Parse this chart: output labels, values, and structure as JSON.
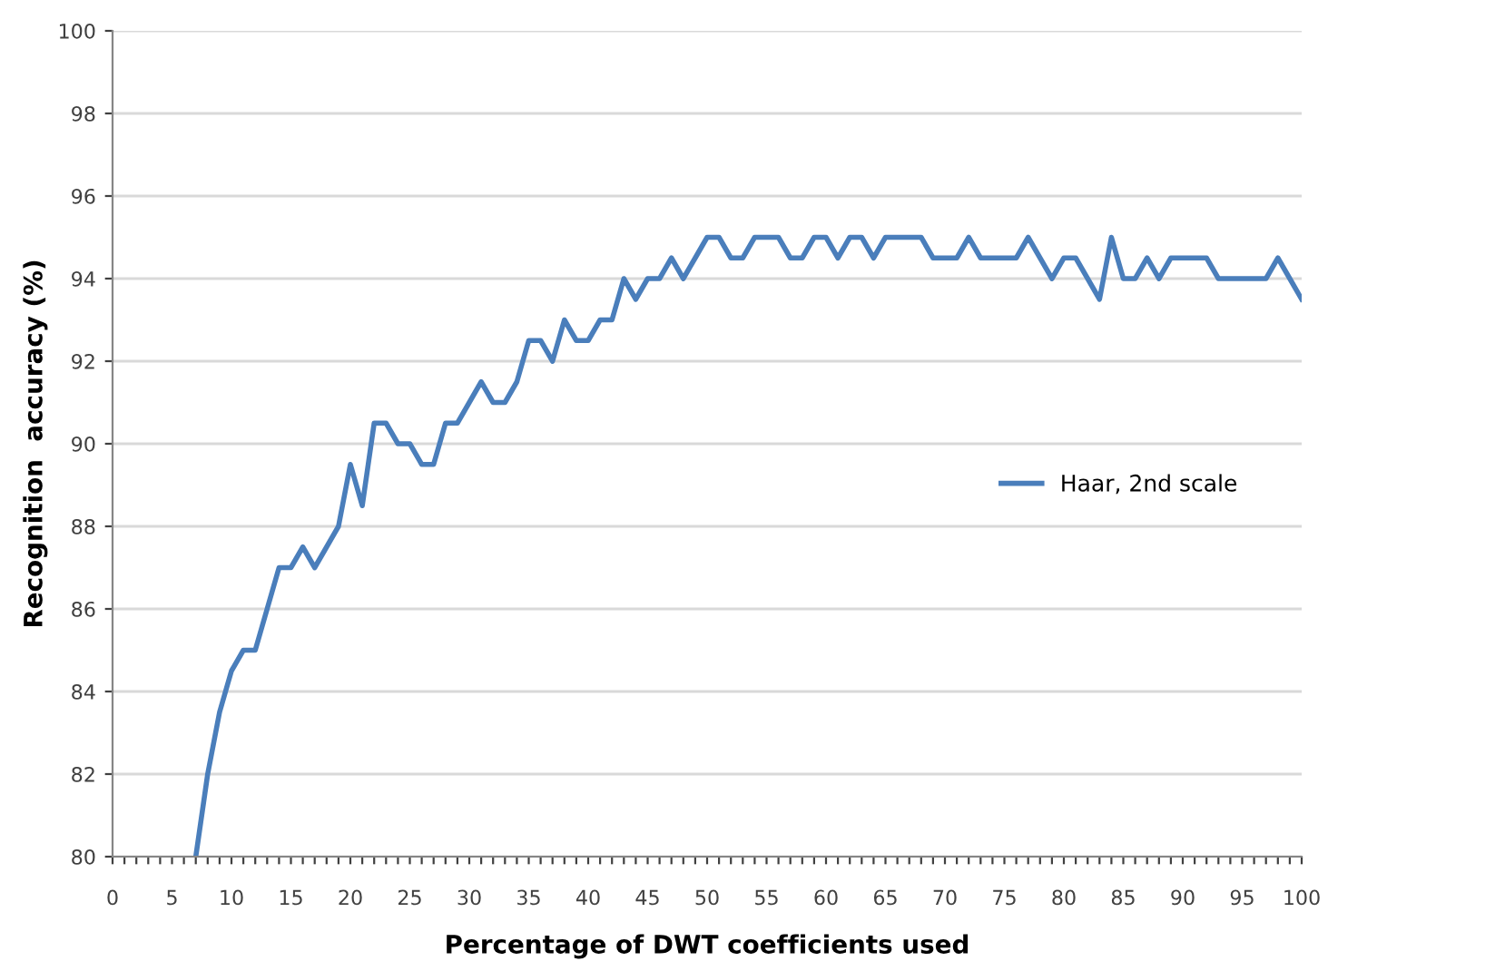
{
  "chart_data": {
    "type": "line",
    "xlabel": "Percentage of DWT coefficients used",
    "ylabel": "Recognition  accuracy (%)",
    "x": [
      7,
      8,
      9,
      10,
      11,
      12,
      13,
      14,
      15,
      16,
      17,
      18,
      19,
      20,
      21,
      22,
      23,
      24,
      25,
      26,
      27,
      28,
      29,
      30,
      31,
      32,
      33,
      34,
      35,
      36,
      37,
      38,
      39,
      40,
      41,
      42,
      43,
      44,
      45,
      46,
      47,
      48,
      49,
      50,
      51,
      52,
      53,
      54,
      55,
      56,
      57,
      58,
      59,
      60,
      61,
      62,
      63,
      64,
      65,
      66,
      67,
      68,
      69,
      70,
      71,
      72,
      73,
      74,
      75,
      76,
      77,
      78,
      79,
      80,
      81,
      82,
      83,
      84,
      85,
      86,
      87,
      88,
      89,
      90,
      91,
      92,
      93,
      94,
      95,
      96,
      97,
      98,
      99,
      100
    ],
    "series": [
      {
        "name": "Haar, 2nd scale",
        "color": "#4a7ebb",
        "values": [
          80,
          82,
          83.5,
          84.5,
          85,
          85,
          86,
          87,
          87,
          87.5,
          87,
          87.5,
          88,
          89.5,
          88.5,
          90.5,
          90.5,
          90,
          90,
          89.5,
          89.5,
          90.5,
          90.5,
          91,
          91.5,
          91,
          91,
          91.5,
          92.5,
          92.5,
          92,
          93,
          92.5,
          92.5,
          93,
          93,
          94,
          93.5,
          94,
          94,
          94.5,
          94,
          94.5,
          95,
          95,
          94.5,
          94.5,
          95,
          95,
          95,
          94.5,
          94.5,
          95,
          95,
          94.5,
          95,
          95,
          94.5,
          95,
          95,
          95,
          95,
          94.5,
          94.5,
          94.5,
          95,
          94.5,
          94.5,
          94.5,
          94.5,
          95,
          94.5,
          94,
          94.5,
          94.5,
          94,
          93.5,
          95,
          94,
          94,
          94.5,
          94,
          94.5,
          94.5,
          94.5,
          94.5,
          94,
          94,
          94,
          94,
          94,
          94.5,
          94,
          93.5
        ]
      }
    ],
    "xlim": [
      0,
      100
    ],
    "ylim": [
      80,
      100
    ],
    "xticks": [
      0,
      {
        "value": 1,
        "label": null
      },
      {
        "value": 2,
        "label": null
      },
      {
        "value": 3,
        "label": null
      },
      {
        "value": 4,
        "label": null
      },
      5,
      {
        "value": 6,
        "label": null
      },
      {
        "value": 7,
        "label": null
      },
      {
        "value": 8,
        "label": null
      },
      {
        "value": 9,
        "label": null
      },
      10,
      {
        "value": 11,
        "label": null
      },
      {
        "value": 12,
        "label": null
      },
      {
        "value": 13,
        "label": null
      },
      {
        "value": 14,
        "label": null
      },
      15,
      {
        "value": 16,
        "label": null
      },
      {
        "value": 17,
        "label": null
      },
      {
        "value": 18,
        "label": null
      },
      {
        "value": 19,
        "label": null
      },
      20,
      {
        "value": 21,
        "label": null
      },
      {
        "value": 22,
        "label": null
      },
      {
        "value": 23,
        "label": null
      },
      {
        "value": 24,
        "label": null
      },
      25,
      {
        "value": 26,
        "label": null
      },
      {
        "value": 27,
        "label": null
      },
      {
        "value": 28,
        "label": null
      },
      {
        "value": 29,
        "label": null
      },
      30,
      {
        "value": 31,
        "label": null
      },
      {
        "value": 32,
        "label": null
      },
      {
        "value": 33,
        "label": null
      },
      {
        "value": 34,
        "label": null
      },
      35,
      {
        "value": 36,
        "label": null
      },
      {
        "value": 37,
        "label": null
      },
      {
        "value": 38,
        "label": null
      },
      {
        "value": 39,
        "label": null
      },
      40,
      {
        "value": 41,
        "label": null
      },
      {
        "value": 42,
        "label": null
      },
      {
        "value": 43,
        "label": null
      },
      {
        "value": 44,
        "label": null
      },
      45,
      {
        "value": 46,
        "label": null
      },
      {
        "value": 47,
        "label": null
      },
      {
        "value": 48,
        "label": null
      },
      {
        "value": 49,
        "label": null
      },
      50,
      {
        "value": 51,
        "label": null
      },
      {
        "value": 52,
        "label": null
      },
      {
        "value": 53,
        "label": null
      },
      {
        "value": 54,
        "label": null
      },
      55,
      {
        "value": 56,
        "label": null
      },
      {
        "value": 57,
        "label": null
      },
      {
        "value": 58,
        "label": null
      },
      {
        "value": 59,
        "label": null
      },
      60,
      {
        "value": 61,
        "label": null
      },
      {
        "value": 62,
        "label": null
      },
      {
        "value": 63,
        "label": null
      },
      {
        "value": 64,
        "label": null
      },
      65,
      {
        "value": 66,
        "label": null
      },
      {
        "value": 67,
        "label": null
      },
      {
        "value": 68,
        "label": null
      },
      {
        "value": 69,
        "label": null
      },
      70,
      {
        "value": 71,
        "label": null
      },
      {
        "value": 72,
        "label": null
      },
      {
        "value": 73,
        "label": null
      },
      {
        "value": 74,
        "label": null
      },
      75,
      {
        "value": 76,
        "label": null
      },
      {
        "value": 77,
        "label": null
      },
      {
        "value": 78,
        "label": null
      },
      {
        "value": 79,
        "label": null
      },
      80,
      {
        "value": 81,
        "label": null
      },
      {
        "value": 82,
        "label": null
      },
      {
        "value": 83,
        "label": null
      },
      {
        "value": 84,
        "label": null
      },
      85,
      {
        "value": 86,
        "label": null
      },
      {
        "value": 87,
        "label": null
      },
      {
        "value": 88,
        "label": null
      },
      {
        "value": 89,
        "label": null
      },
      90,
      {
        "value": 91,
        "label": null
      },
      {
        "value": 92,
        "label": null
      },
      {
        "value": 93,
        "label": null
      },
      {
        "value": 94,
        "label": null
      },
      95,
      {
        "value": 96,
        "label": null
      },
      {
        "value": 97,
        "label": null
      },
      {
        "value": 98,
        "label": null
      },
      {
        "value": 99,
        "label": null
      },
      100
    ],
    "yticks": [
      80,
      82,
      84,
      86,
      88,
      90,
      92,
      94,
      96,
      98,
      100
    ],
    "grid": "y",
    "legend": "right",
    "marker": "none",
    "line_style": "solid"
  }
}
